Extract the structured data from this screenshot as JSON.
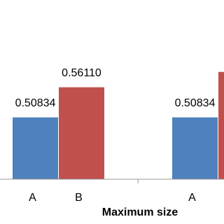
{
  "chart_data": {
    "type": "bar",
    "x_label": "Maximum size",
    "categories": [
      "A",
      "B",
      "A",
      null
    ],
    "values": [
      0.50834,
      0.5611,
      0.50834,
      0.588
    ],
    "value_labels": [
      "0.50834",
      "0.56110",
      "0.50834",
      null
    ],
    "colors": [
      "#4f81bd",
      "#c0504d",
      "#4f81bd",
      "#c0504d"
    ],
    "ylim": [
      0.4,
      0.714
    ]
  }
}
